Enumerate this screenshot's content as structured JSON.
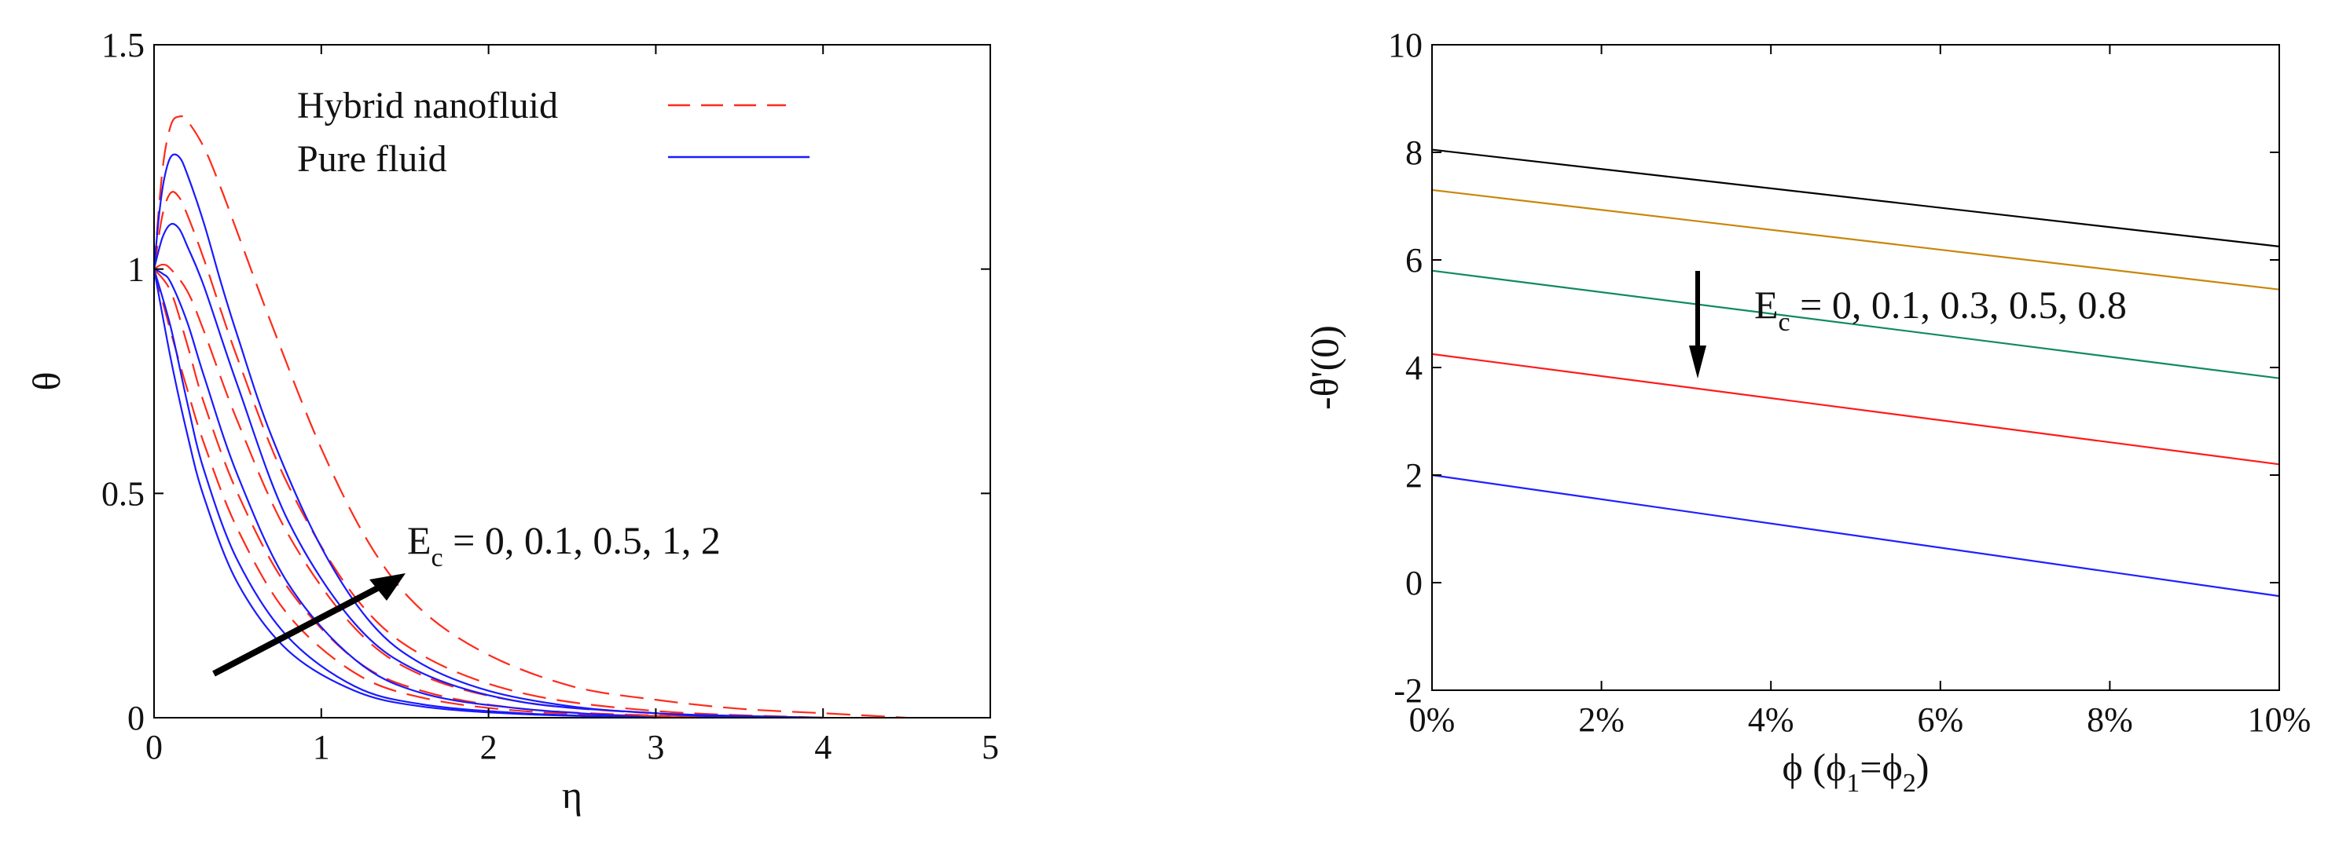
{
  "chart_data": [
    {
      "type": "line",
      "xlabel": "η",
      "ylabel": "θ",
      "xlim": [
        0,
        5
      ],
      "ylim": [
        0,
        1.5
      ],
      "x_ticks": [
        0,
        1,
        2,
        3,
        4,
        5
      ],
      "y_ticks": [
        0,
        0.5,
        1,
        1.5
      ],
      "grid": false,
      "legend_placement": "top",
      "legend": [
        {
          "label": "Hybrid nanofluid",
          "color": "#ff2a1a",
          "style": "dashed"
        },
        {
          "label": "Pure fluid",
          "color": "#1a1aff",
          "style": "solid"
        }
      ],
      "annotation": {
        "prefix": "E",
        "sub": "c",
        "suffix": " = 0, 0.1, 0.5, 1, 2",
        "arrow": "up-right"
      },
      "series": [
        {
          "group": "Hybrid nanofluid",
          "Ec": 0,
          "color": "#ff2a1a",
          "dashed": true,
          "x": [
            0,
            0.1,
            0.2,
            0.3,
            0.5,
            0.8,
            1.2,
            1.6,
            2.2,
            3,
            4
          ],
          "y": [
            1,
            0.86,
            0.73,
            0.61,
            0.42,
            0.23,
            0.1,
            0.045,
            0.015,
            0.004,
            0
          ]
        },
        {
          "group": "Hybrid nanofluid",
          "Ec": 0.1,
          "color": "#ff2a1a",
          "dashed": true,
          "x": [
            0,
            0.1,
            0.2,
            0.3,
            0.5,
            0.8,
            1.2,
            1.6,
            2.2,
            3,
            4
          ],
          "y": [
            1,
            0.95,
            0.83,
            0.7,
            0.5,
            0.29,
            0.13,
            0.06,
            0.02,
            0.005,
            0
          ]
        },
        {
          "group": "Hybrid nanofluid",
          "Ec": 0.5,
          "color": "#ff2a1a",
          "dashed": true,
          "x": [
            0,
            0.05,
            0.1,
            0.2,
            0.3,
            0.5,
            0.8,
            1.2,
            1.6,
            2.2,
            3,
            4
          ],
          "y": [
            1,
            1.01,
            1,
            0.95,
            0.86,
            0.66,
            0.41,
            0.2,
            0.095,
            0.035,
            0.01,
            0
          ]
        },
        {
          "group": "Hybrid nanofluid",
          "Ec": 1,
          "color": "#ff2a1a",
          "dashed": true,
          "x": [
            0,
            0.05,
            0.1,
            0.15,
            0.2,
            0.3,
            0.5,
            0.8,
            1.2,
            1.6,
            2.2,
            3,
            4
          ],
          "y": [
            1,
            1.12,
            1.17,
            1.16,
            1.12,
            1.02,
            0.8,
            0.52,
            0.27,
            0.14,
            0.055,
            0.015,
            0
          ]
        },
        {
          "group": "Hybrid nanofluid",
          "Ec": 2,
          "color": "#ff2a1a",
          "dashed": true,
          "x": [
            0,
            0.05,
            0.1,
            0.15,
            0.2,
            0.3,
            0.4,
            0.5,
            0.7,
            1,
            1.3,
            1.6,
            2,
            2.5,
            3,
            3.5,
            4,
            4.5
          ],
          "y": [
            1,
            1.22,
            1.32,
            1.34,
            1.33,
            1.27,
            1.18,
            1.08,
            0.88,
            0.6,
            0.38,
            0.24,
            0.14,
            0.07,
            0.04,
            0.02,
            0.01,
            0
          ]
        },
        {
          "group": "Pure fluid",
          "Ec": 0,
          "color": "#1a1aff",
          "dashed": false,
          "x": [
            0,
            0.1,
            0.2,
            0.3,
            0.5,
            0.8,
            1.2,
            1.6,
            2.2,
            3
          ],
          "y": [
            1,
            0.8,
            0.63,
            0.49,
            0.3,
            0.15,
            0.06,
            0.025,
            0.008,
            0
          ]
        },
        {
          "group": "Pure fluid",
          "Ec": 0.1,
          "color": "#1a1aff",
          "dashed": false,
          "x": [
            0,
            0.1,
            0.2,
            0.3,
            0.5,
            0.8,
            1.2,
            1.6,
            2.2,
            3
          ],
          "y": [
            1,
            0.87,
            0.7,
            0.55,
            0.35,
            0.18,
            0.07,
            0.03,
            0.01,
            0
          ]
        },
        {
          "group": "Pure fluid",
          "Ec": 0.5,
          "color": "#1a1aff",
          "dashed": false,
          "x": [
            0,
            0.05,
            0.1,
            0.2,
            0.3,
            0.5,
            0.8,
            1.2,
            1.6,
            2.2,
            3
          ],
          "y": [
            1,
            0.99,
            0.97,
            0.88,
            0.76,
            0.54,
            0.3,
            0.13,
            0.055,
            0.02,
            0
          ]
        },
        {
          "group": "Pure fluid",
          "Ec": 1,
          "color": "#1a1aff",
          "dashed": false,
          "x": [
            0,
            0.05,
            0.1,
            0.15,
            0.2,
            0.3,
            0.5,
            0.8,
            1.2,
            1.6,
            2.2,
            3,
            3.5
          ],
          "y": [
            1,
            1.07,
            1.1,
            1.09,
            1.05,
            0.96,
            0.74,
            0.44,
            0.21,
            0.1,
            0.035,
            0.01,
            0
          ]
        },
        {
          "group": "Pure fluid",
          "Ec": 2,
          "color": "#1a1aff",
          "dashed": false,
          "x": [
            0,
            0.03,
            0.06,
            0.1,
            0.15,
            0.2,
            0.3,
            0.4,
            0.5,
            0.7,
            1,
            1.3,
            1.6,
            2,
            2.5,
            3,
            3.5,
            4
          ],
          "y": [
            1,
            1.12,
            1.2,
            1.25,
            1.25,
            1.21,
            1.1,
            0.97,
            0.85,
            0.63,
            0.38,
            0.21,
            0.12,
            0.06,
            0.025,
            0.01,
            0.004,
            0
          ]
        }
      ]
    },
    {
      "type": "line",
      "xlabel_main": "ϕ (ϕ",
      "xlabel_sub1": "1",
      "xlabel_mid": "=ϕ",
      "xlabel_sub2": "2",
      "xlabel_end": ")",
      "ylabel": "-θ'(0)",
      "xlim": [
        0,
        10
      ],
      "ylim": [
        -2,
        10
      ],
      "x_ticks": [
        0,
        2,
        4,
        6,
        8,
        10
      ],
      "x_tick_labels": [
        "0%",
        "2%",
        "4%",
        "6%",
        "8%",
        "10%"
      ],
      "y_ticks": [
        -2,
        0,
        2,
        4,
        6,
        8,
        10
      ],
      "grid": false,
      "annotation": {
        "prefix": "E",
        "sub": "c",
        "suffix": " = 0, 0.1, 0.3, 0.5, 0.8",
        "arrow": "down"
      },
      "series": [
        {
          "Ec": 0,
          "color": "#000000",
          "x": [
            0,
            10
          ],
          "y": [
            8.05,
            6.25
          ]
        },
        {
          "Ec": 0.1,
          "color": "#c8860a",
          "x": [
            0,
            10
          ],
          "y": [
            7.3,
            5.45
          ]
        },
        {
          "Ec": 0.3,
          "color": "#108a60",
          "x": [
            0,
            10
          ],
          "y": [
            5.8,
            3.8
          ]
        },
        {
          "Ec": 0.5,
          "color": "#ff1a1a",
          "x": [
            0,
            10
          ],
          "y": [
            4.25,
            2.2
          ]
        },
        {
          "Ec": 0.8,
          "color": "#2020ff",
          "x": [
            0,
            10
          ],
          "y": [
            2.0,
            -0.25
          ]
        }
      ]
    }
  ]
}
